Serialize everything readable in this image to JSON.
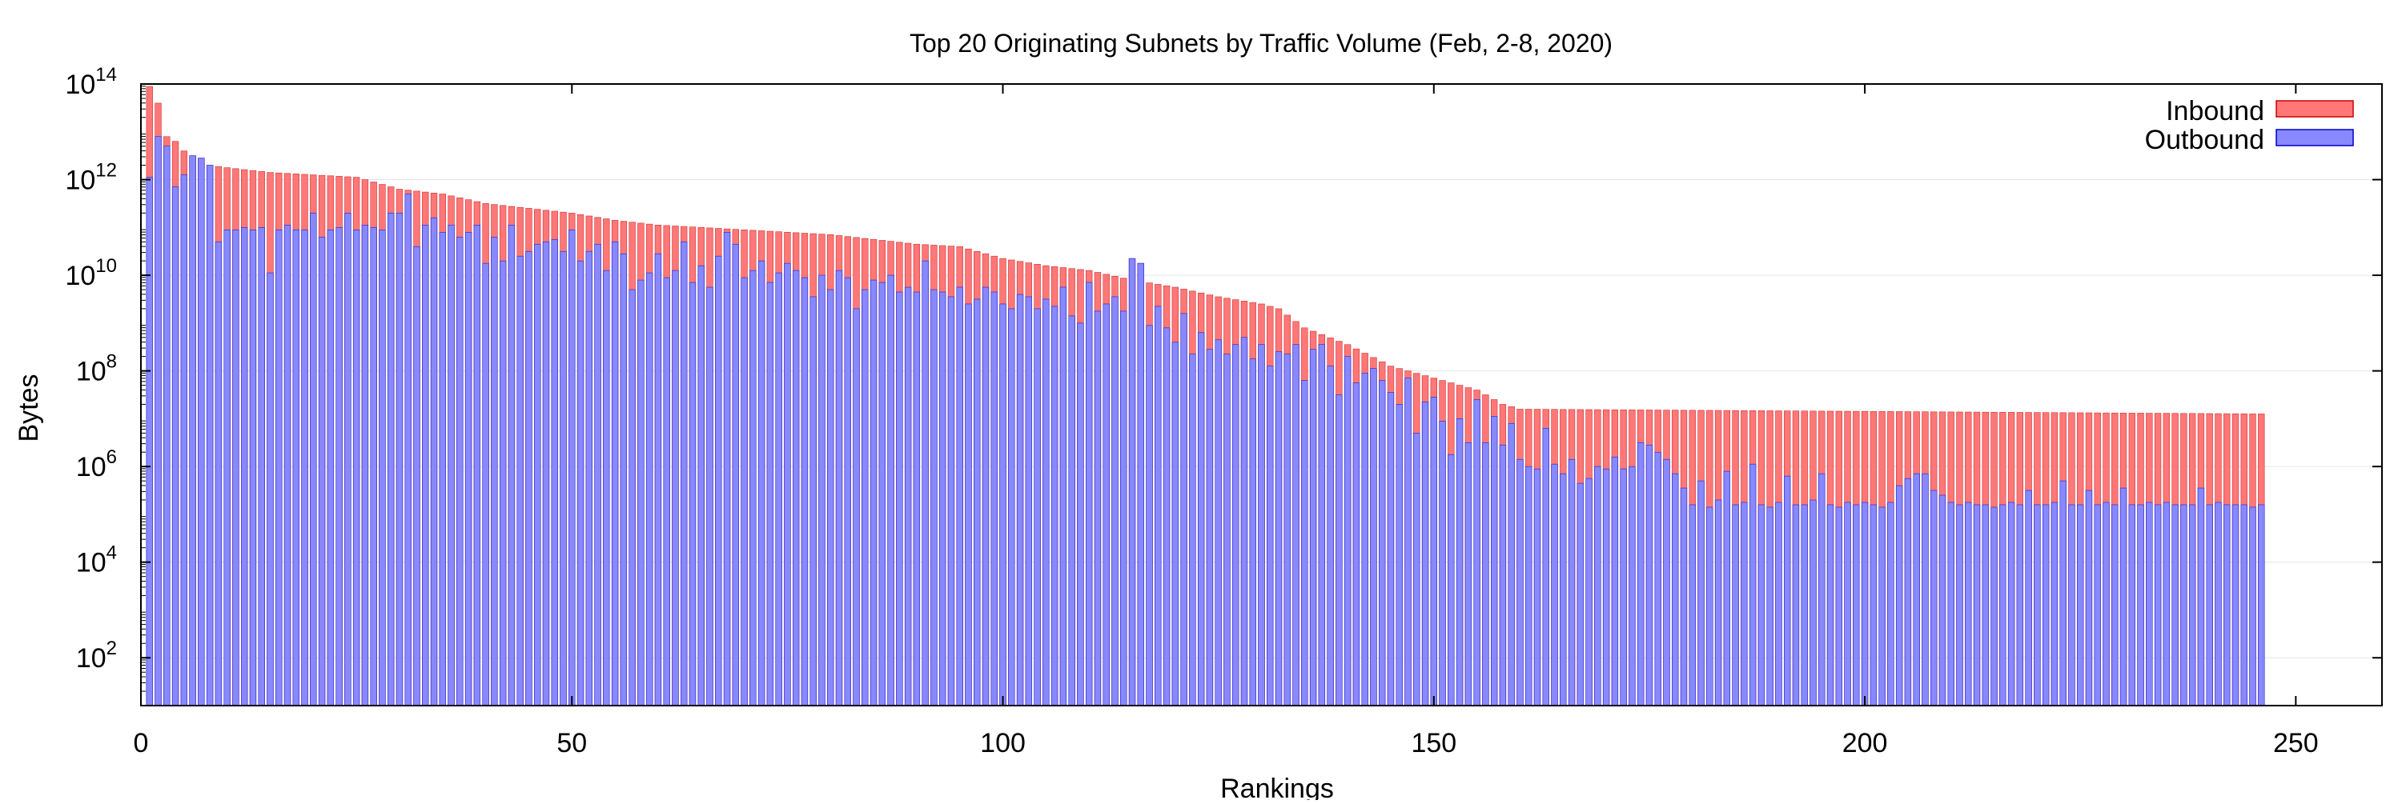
{
  "chart_data": {
    "type": "bar",
    "stacked": true,
    "title": "Top 20 Originating Subnets by Traffic Volume (Feb, 2-8, 2020)",
    "xlabel": "Rankings",
    "ylabel": "Bytes",
    "xlim": [
      0,
      260
    ],
    "ylim": [
      10,
      100000000000000
    ],
    "yscale": "log",
    "x_ticks": [
      0,
      50,
      100,
      150,
      200,
      250
    ],
    "y_ticks": [
      {
        "base": "10",
        "exp": "2",
        "value": 100
      },
      {
        "base": "10",
        "exp": "4",
        "value": 10000
      },
      {
        "base": "10",
        "exp": "6",
        "value": 1000000
      },
      {
        "base": "10",
        "exp": "8",
        "value": 100000000
      },
      {
        "base": "10",
        "exp": "10",
        "value": 10000000000
      },
      {
        "base": "10",
        "exp": "12",
        "value": 1000000000000
      },
      {
        "base": "10",
        "exp": "14",
        "value": 100000000000000
      }
    ],
    "grid": true,
    "legend_position": "top-right",
    "series": [
      {
        "name": "Inbound",
        "color": "#ff7777",
        "role": "total"
      },
      {
        "name": "Outbound",
        "color": "#8888ff",
        "role": "part"
      }
    ],
    "x_range": [
      1,
      246
    ],
    "total_log10_anchors": [
      [
        1,
        13.95
      ],
      [
        2,
        13.6
      ],
      [
        3,
        12.9
      ],
      [
        4,
        12.8
      ],
      [
        5,
        12.6
      ],
      [
        6,
        12.5
      ],
      [
        7,
        12.35
      ],
      [
        8,
        12.3
      ],
      [
        10,
        12.25
      ],
      [
        15,
        12.15
      ],
      [
        20,
        12.1
      ],
      [
        25,
        12.05
      ],
      [
        28,
        11.9
      ],
      [
        30,
        11.8
      ],
      [
        35,
        11.7
      ],
      [
        40,
        11.5
      ],
      [
        45,
        11.4
      ],
      [
        50,
        11.3
      ],
      [
        55,
        11.15
      ],
      [
        60,
        11.05
      ],
      [
        65,
        11.0
      ],
      [
        70,
        10.95
      ],
      [
        75,
        10.9
      ],
      [
        80,
        10.85
      ],
      [
        85,
        10.75
      ],
      [
        90,
        10.65
      ],
      [
        95,
        10.6
      ],
      [
        100,
        10.35
      ],
      [
        105,
        10.2
      ],
      [
        110,
        10.1
      ],
      [
        115,
        9.9
      ],
      [
        120,
        9.75
      ],
      [
        125,
        9.55
      ],
      [
        130,
        9.4
      ],
      [
        132,
        9.3
      ],
      [
        135,
        8.9
      ],
      [
        140,
        8.55
      ],
      [
        145,
        8.1
      ],
      [
        150,
        7.85
      ],
      [
        155,
        7.6
      ],
      [
        158,
        7.3
      ],
      [
        160,
        7.2
      ],
      [
        246,
        7.1
      ]
    ],
    "outbound_log10": [
      12.05,
      12.9,
      12.7,
      11.85,
      12.1,
      12.5,
      12.45,
      12.3,
      10.7,
      10.95,
      10.95,
      11.0,
      10.95,
      11.0,
      10.05,
      10.95,
      11.05,
      10.95,
      10.95,
      11.3,
      10.8,
      10.95,
      11.0,
      11.3,
      10.95,
      11.05,
      11.0,
      10.95,
      11.3,
      11.3,
      11.7,
      10.6,
      11.05,
      11.2,
      10.9,
      11.05,
      10.8,
      10.9,
      11.05,
      10.25,
      10.8,
      10.3,
      11.05,
      10.4,
      10.5,
      10.65,
      10.7,
      10.75,
      10.5,
      10.95,
      10.3,
      10.5,
      10.65,
      10.1,
      10.7,
      10.45,
      9.7,
      9.9,
      10.05,
      10.45,
      9.95,
      10.1,
      10.7,
      9.85,
      10.2,
      9.75,
      10.4,
      10.9,
      10.65,
      9.95,
      10.1,
      10.3,
      9.85,
      10.05,
      10.25,
      10.1,
      9.95,
      9.55,
      10.0,
      9.7,
      10.1,
      9.95,
      9.3,
      9.7,
      9.9,
      9.85,
      10.0,
      9.65,
      9.75,
      9.65,
      10.3,
      9.7,
      9.65,
      9.55,
      9.75,
      9.4,
      9.5,
      9.75,
      9.65,
      9.4,
      9.3,
      9.6,
      9.55,
      9.3,
      9.5,
      9.35,
      9.75,
      9.15,
      9.0,
      9.85,
      9.25,
      9.4,
      9.55,
      9.25,
      10.35,
      10.25,
      8.95,
      9.35,
      8.9,
      8.6,
      9.2,
      8.35,
      8.8,
      8.45,
      8.65,
      8.35,
      8.55,
      8.7,
      8.25,
      8.55,
      8.1,
      8.4,
      8.35,
      8.55,
      7.8,
      8.45,
      8.55,
      8.1,
      7.5,
      8.3,
      7.75,
      7.95,
      8.05,
      7.8,
      7.55,
      7.3,
      7.85,
      6.7,
      7.35,
      7.45,
      6.95,
      6.25,
      7.0,
      6.5,
      7.4,
      6.5,
      7.05,
      6.45,
      6.9,
      6.15,
      6.0,
      5.95,
      6.8,
      6.05,
      5.85,
      6.15,
      5.65,
      5.75,
      6.0,
      5.95,
      6.2,
      5.95,
      6.0,
      6.5,
      6.45,
      6.3,
      6.15,
      5.85,
      5.55,
      5.2,
      5.7,
      5.15,
      5.3,
      5.9,
      5.2,
      5.25,
      6.05,
      5.2,
      5.15,
      5.25,
      5.8,
      5.2,
      5.2,
      5.3,
      5.85,
      5.2,
      5.15,
      5.25,
      5.2,
      5.25,
      5.2,
      5.15,
      5.25,
      5.6,
      5.75,
      5.85,
      5.85,
      5.5,
      5.4,
      5.25,
      5.2,
      5.25,
      5.2,
      5.2,
      5.15,
      5.2,
      5.25,
      5.2,
      5.5,
      5.2,
      5.2,
      5.25,
      5.7,
      5.2,
      5.2,
      5.5,
      5.2,
      5.25,
      5.2,
      5.55,
      5.2,
      5.2,
      5.25,
      5.2,
      5.25,
      5.2,
      5.2,
      5.2,
      5.55,
      5.2,
      5.25,
      5.2,
      5.2,
      5.2,
      5.15,
      5.2,
      5.15,
      5.2,
      5.2
    ]
  }
}
